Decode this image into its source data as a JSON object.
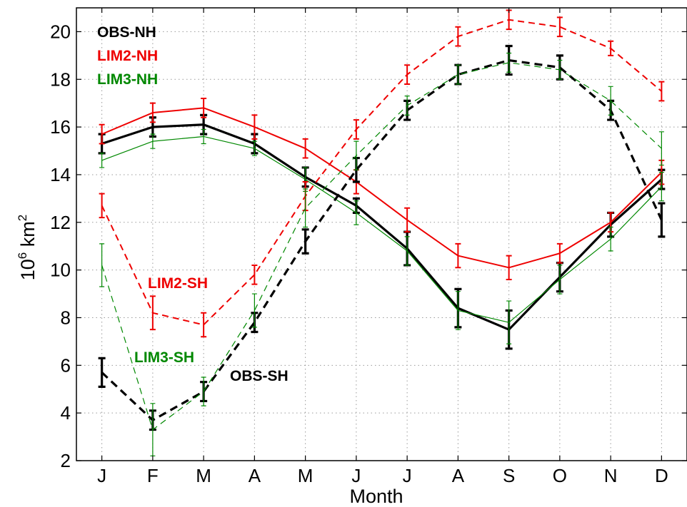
{
  "chart_data": {
    "type": "line",
    "xlabel": "Month",
    "ylabel": "10^6 km^2",
    "ylabel_base": "10",
    "ylabel_exp": "6",
    "ylabel_unit": " km",
    "ylabel_unit_exp": "2",
    "categories": [
      "J",
      "F",
      "M",
      "A",
      "M",
      "J",
      "J",
      "A",
      "S",
      "O",
      "N",
      "D"
    ],
    "ylim": [
      2,
      21
    ],
    "yticks": [
      2,
      4,
      6,
      8,
      10,
      12,
      14,
      16,
      18,
      20
    ],
    "grid": true,
    "series": [
      {
        "name": "OBS-NH",
        "color": "#000000",
        "dashed": false,
        "width": 3.2,
        "cap": 10,
        "values": [
          15.3,
          16.0,
          16.1,
          15.3,
          13.9,
          12.7,
          10.9,
          8.4,
          7.5,
          9.7,
          11.9,
          13.8
        ],
        "errors": [
          0.4,
          0.4,
          0.4,
          0.4,
          0.4,
          0.3,
          0.7,
          0.8,
          0.8,
          0.6,
          0.5,
          0.4
        ]
      },
      {
        "name": "LIM2-NH",
        "color": "#ee0000",
        "dashed": false,
        "width": 2,
        "cap": 8,
        "values": [
          15.7,
          16.6,
          16.8,
          16.0,
          15.1,
          13.7,
          12.1,
          10.6,
          10.1,
          10.7,
          12.0,
          14.1
        ],
        "errors": [
          0.4,
          0.4,
          0.4,
          0.5,
          0.4,
          0.5,
          0.5,
          0.5,
          0.5,
          0.4,
          0.4,
          0.5
        ]
      },
      {
        "name": "LIM3-NH",
        "color": "#008800",
        "dashed": false,
        "width": 1.2,
        "cap": 7,
        "values": [
          14.6,
          15.4,
          15.6,
          15.1,
          13.8,
          12.4,
          10.8,
          8.3,
          7.8,
          9.6,
          11.3,
          13.5
        ],
        "errors": [
          0.3,
          0.3,
          0.3,
          0.3,
          0.5,
          0.5,
          0.6,
          0.8,
          0.9,
          0.6,
          0.5,
          0.6
        ]
      },
      {
        "name": "OBS-SH",
        "color": "#000000",
        "dashed": true,
        "width": 3.2,
        "cap": 10,
        "values": [
          5.7,
          3.7,
          4.9,
          7.8,
          11.2,
          14.2,
          16.7,
          18.2,
          18.8,
          18.5,
          16.7,
          12.1
        ],
        "errors": [
          0.6,
          0.4,
          0.4,
          0.4,
          0.5,
          0.5,
          0.4,
          0.4,
          0.6,
          0.5,
          0.4,
          0.7
        ]
      },
      {
        "name": "LIM2-SH",
        "color": "#ee0000",
        "dashed": true,
        "width": 2,
        "cap": 8,
        "values": [
          12.7,
          8.2,
          7.7,
          9.8,
          13.1,
          15.9,
          18.2,
          19.8,
          20.5,
          20.2,
          19.3,
          17.5
        ],
        "errors": [
          0.5,
          0.7,
          0.5,
          0.4,
          0.6,
          0.4,
          0.4,
          0.4,
          0.4,
          0.4,
          0.3,
          0.4
        ]
      },
      {
        "name": "LIM3-SH",
        "color": "#008800",
        "dashed": true,
        "width": 1.2,
        "cap": 7,
        "values": [
          10.2,
          3.3,
          4.9,
          8.3,
          12.6,
          14.8,
          16.9,
          18.2,
          18.7,
          18.4,
          17.1,
          15.1
        ],
        "errors": [
          0.9,
          1.1,
          0.6,
          0.7,
          0.8,
          0.6,
          0.4,
          0.4,
          0.4,
          0.4,
          0.6,
          0.7
        ]
      }
    ],
    "labels": [
      {
        "text": "OBS-NH",
        "color": "#000000"
      },
      {
        "text": "LIM2-NH",
        "color": "#ee0000"
      },
      {
        "text": "LIM3-NH",
        "color": "#008800"
      },
      {
        "text": "LIM2-SH",
        "color": "#ee0000"
      },
      {
        "text": "LIM3-SH",
        "color": "#008800"
      },
      {
        "text": "OBS-SH",
        "color": "#000000"
      }
    ]
  }
}
